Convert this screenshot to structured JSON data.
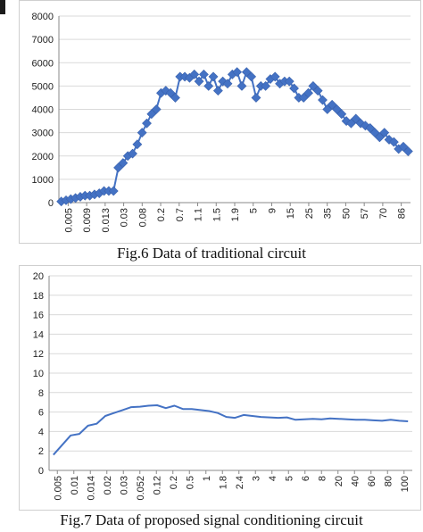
{
  "captions": {
    "fig6": "Fig.6 Data of traditional circuit",
    "fig7": "Fig.7 Data of proposed signal conditioning circuit"
  },
  "colors": {
    "series1": "#4472c4",
    "series2": "#4472c4",
    "grid": "#d9d9d9",
    "axis": "#888888"
  },
  "chart_data": [
    {
      "type": "line",
      "marker": "diamond",
      "grid": true,
      "ylim": [
        0,
        8000
      ],
      "yticks": [
        0,
        1000,
        2000,
        3000,
        4000,
        5000,
        6000,
        7000,
        8000
      ],
      "xtick_labels": [
        "0.005",
        "0.009",
        "0.013",
        "0.03",
        "0.08",
        "0.2",
        "0.7",
        "1.1",
        "1.5",
        "1.9",
        "5",
        "9",
        "15",
        "25",
        "35",
        "50",
        "57",
        "70",
        "86"
      ],
      "values": [
        50,
        100,
        150,
        200,
        250,
        300,
        300,
        350,
        400,
        500,
        500,
        500,
        1500,
        1700,
        2000,
        2100,
        2500,
        3000,
        3400,
        3800,
        4000,
        4700,
        4800,
        4700,
        4500,
        5400,
        5400,
        5350,
        5500,
        5200,
        5500,
        5000,
        5400,
        4800,
        5200,
        5100,
        5500,
        5600,
        5000,
        5600,
        5400,
        4500,
        5000,
        5000,
        5300,
        5400,
        5100,
        5200,
        5200,
        4900,
        4500,
        4500,
        4700,
        5000,
        4800,
        4400,
        4000,
        4200,
        4000,
        3800,
        3500,
        3400,
        3600,
        3400,
        3300,
        3200,
        3000,
        2800,
        3000,
        2700,
        2600,
        2300,
        2400,
        2200
      ]
    },
    {
      "type": "line",
      "marker": "none",
      "grid": true,
      "ylim": [
        0,
        20
      ],
      "yticks": [
        0,
        2,
        4,
        6,
        8,
        10,
        12,
        14,
        16,
        18,
        20
      ],
      "xtick_labels": [
        "0.005",
        "0.01",
        "0.014",
        "0.02",
        "0.03",
        "0.052",
        "0.12",
        "0.2",
        "0.5",
        "1",
        "1.8",
        "2.4",
        "3",
        "4",
        "5",
        "6",
        "8",
        "20",
        "40",
        "60",
        "80",
        "100"
      ],
      "values": [
        1.6,
        2.6,
        3.6,
        3.75,
        4.6,
        4.8,
        5.6,
        5.9,
        6.2,
        6.5,
        6.55,
        6.65,
        6.7,
        6.4,
        6.65,
        6.3,
        6.3,
        6.2,
        6.1,
        5.9,
        5.5,
        5.4,
        5.7,
        5.6,
        5.5,
        5.45,
        5.4,
        5.45,
        5.2,
        5.25,
        5.3,
        5.25,
        5.35,
        5.3,
        5.25,
        5.2,
        5.2,
        5.15,
        5.1,
        5.2,
        5.1,
        5.05
      ]
    }
  ]
}
